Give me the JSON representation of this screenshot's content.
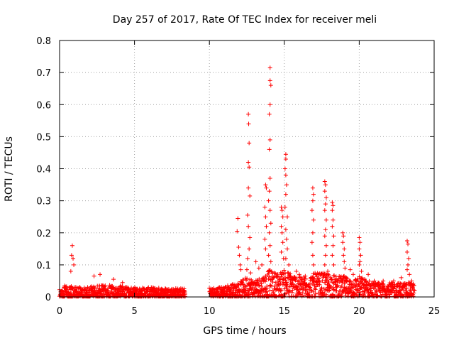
{
  "chart_data": {
    "type": "scatter",
    "title": "Day 257 of 2017, Rate Of TEC Index for receiver meli",
    "xlabel": "GPS time / hours",
    "ylabel": "ROTI / TECUs",
    "xlim": [
      0,
      25
    ],
    "ylim": [
      0,
      0.8
    ],
    "x_ticks": [
      0,
      5,
      10,
      15,
      20,
      25
    ],
    "x_tick_labels": [
      "0",
      "5",
      "10",
      "15",
      "20",
      "25"
    ],
    "y_ticks": [
      0,
      0.1,
      0.2,
      0.3,
      0.4,
      0.5,
      0.6,
      0.7,
      0.8
    ],
    "y_tick_labels": [
      "0",
      "0.1",
      "0.2",
      "0.3",
      "0.4",
      "0.5",
      "0.6",
      "0.7",
      "0.8"
    ],
    "grid": true,
    "marker": "plus",
    "series": [
      {
        "name": "ROTI",
        "color": "#ff0000",
        "baseline": [
          [
            0.0,
            0.015,
            0.02
          ],
          [
            0.5,
            0.015,
            0.02
          ],
          [
            1.0,
            0.015,
            0.02
          ],
          [
            1.5,
            0.012,
            0.02
          ],
          [
            2.0,
            0.012,
            0.02
          ],
          [
            2.5,
            0.015,
            0.02
          ],
          [
            3.0,
            0.015,
            0.022
          ],
          [
            3.5,
            0.015,
            0.022
          ],
          [
            4.0,
            0.015,
            0.022
          ],
          [
            4.5,
            0.012,
            0.018
          ],
          [
            5.0,
            0.012,
            0.018
          ],
          [
            5.5,
            0.012,
            0.018
          ],
          [
            6.0,
            0.012,
            0.018
          ],
          [
            6.5,
            0.012,
            0.018
          ],
          [
            7.0,
            0.012,
            0.016
          ],
          [
            7.5,
            0.012,
            0.016
          ],
          [
            8.0,
            0.012,
            0.016
          ],
          [
            8.4,
            0.012,
            0.014
          ],
          [
            8.6,
            null,
            null
          ],
          [
            9.9,
            null,
            null
          ],
          [
            10.0,
            0.012,
            0.016
          ],
          [
            10.5,
            0.012,
            0.018
          ],
          [
            11.0,
            0.015,
            0.02
          ],
          [
            11.5,
            0.018,
            0.022
          ],
          [
            12.0,
            0.02,
            0.025
          ],
          [
            12.5,
            0.03,
            0.035
          ],
          [
            13.0,
            0.025,
            0.03
          ],
          [
            13.5,
            0.03,
            0.035
          ],
          [
            14.0,
            0.04,
            0.045
          ],
          [
            14.5,
            0.035,
            0.04
          ],
          [
            15.0,
            0.04,
            0.045
          ],
          [
            15.5,
            0.035,
            0.04
          ],
          [
            16.0,
            0.03,
            0.035
          ],
          [
            16.5,
            0.03,
            0.035
          ],
          [
            17.0,
            0.035,
            0.04
          ],
          [
            17.5,
            0.035,
            0.04
          ],
          [
            18.0,
            0.035,
            0.04
          ],
          [
            18.5,
            0.03,
            0.035
          ],
          [
            19.0,
            0.03,
            0.035
          ],
          [
            19.5,
            0.025,
            0.03
          ],
          [
            20.0,
            0.03,
            0.035
          ],
          [
            20.5,
            0.025,
            0.03
          ],
          [
            21.0,
            0.02,
            0.025
          ],
          [
            21.5,
            0.02,
            0.025
          ],
          [
            22.0,
            0.02,
            0.025
          ],
          [
            22.5,
            0.02,
            0.025
          ],
          [
            23.0,
            0.02,
            0.025
          ],
          [
            23.5,
            0.02,
            0.025
          ],
          [
            23.7,
            0.02,
            0.02
          ]
        ],
        "spikes": [
          [
            0.85,
            0.16
          ],
          [
            0.8,
            0.13
          ],
          [
            0.9,
            0.12
          ],
          [
            0.95,
            0.1
          ],
          [
            0.75,
            0.08
          ],
          [
            2.3,
            0.065
          ],
          [
            2.7,
            0.07
          ],
          [
            3.6,
            0.055
          ],
          [
            4.2,
            0.045
          ],
          [
            11.9,
            0.245
          ],
          [
            11.85,
            0.205
          ],
          [
            11.95,
            0.155
          ],
          [
            12.0,
            0.13
          ],
          [
            12.05,
            0.1
          ],
          [
            12.1,
            0.085
          ],
          [
            12.6,
            0.57
          ],
          [
            12.62,
            0.54
          ],
          [
            12.65,
            0.48
          ],
          [
            12.6,
            0.42
          ],
          [
            12.65,
            0.405
          ],
          [
            12.6,
            0.34
          ],
          [
            12.7,
            0.315
          ],
          [
            12.55,
            0.255
          ],
          [
            12.6,
            0.22
          ],
          [
            12.7,
            0.185
          ],
          [
            12.65,
            0.15
          ],
          [
            12.55,
            0.12
          ],
          [
            12.5,
            0.085
          ],
          [
            12.75,
            0.075
          ],
          [
            13.1,
            0.11
          ],
          [
            13.3,
            0.09
          ],
          [
            13.5,
            0.1
          ],
          [
            13.75,
            0.35
          ],
          [
            13.8,
            0.34
          ],
          [
            13.7,
            0.28
          ],
          [
            13.75,
            0.25
          ],
          [
            13.8,
            0.22
          ],
          [
            13.7,
            0.18
          ],
          [
            13.75,
            0.15
          ],
          [
            14.05,
            0.715
          ],
          [
            14.05,
            0.675
          ],
          [
            14.1,
            0.66
          ],
          [
            14.05,
            0.6
          ],
          [
            14.0,
            0.57
          ],
          [
            14.05,
            0.49
          ],
          [
            14.0,
            0.46
          ],
          [
            14.05,
            0.37
          ],
          [
            14.0,
            0.33
          ],
          [
            13.95,
            0.3
          ],
          [
            14.05,
            0.27
          ],
          [
            14.1,
            0.23
          ],
          [
            14.0,
            0.2
          ],
          [
            14.05,
            0.16
          ],
          [
            13.95,
            0.13
          ],
          [
            14.1,
            0.11
          ],
          [
            14.8,
            0.28
          ],
          [
            14.85,
            0.27
          ],
          [
            14.9,
            0.25
          ],
          [
            14.8,
            0.22
          ],
          [
            14.85,
            0.2
          ],
          [
            14.9,
            0.17
          ],
          [
            14.8,
            0.14
          ],
          [
            14.95,
            0.12
          ],
          [
            15.1,
            0.445
          ],
          [
            15.1,
            0.43
          ],
          [
            15.05,
            0.4
          ],
          [
            15.1,
            0.38
          ],
          [
            15.15,
            0.35
          ],
          [
            15.1,
            0.32
          ],
          [
            15.05,
            0.28
          ],
          [
            15.2,
            0.25
          ],
          [
            15.1,
            0.21
          ],
          [
            15.15,
            0.18
          ],
          [
            15.2,
            0.15
          ],
          [
            15.1,
            0.12
          ],
          [
            15.3,
            0.1
          ],
          [
            15.8,
            0.08
          ],
          [
            16.0,
            0.07
          ],
          [
            16.4,
            0.065
          ],
          [
            16.9,
            0.34
          ],
          [
            16.95,
            0.32
          ],
          [
            16.9,
            0.3
          ],
          [
            16.85,
            0.27
          ],
          [
            16.95,
            0.24
          ],
          [
            16.9,
            0.2
          ],
          [
            16.85,
            0.17
          ],
          [
            16.9,
            0.13
          ],
          [
            16.95,
            0.1
          ],
          [
            17.7,
            0.36
          ],
          [
            17.75,
            0.35
          ],
          [
            17.7,
            0.33
          ],
          [
            17.8,
            0.31
          ],
          [
            17.75,
            0.29
          ],
          [
            17.7,
            0.27
          ],
          [
            17.8,
            0.24
          ],
          [
            17.75,
            0.21
          ],
          [
            17.7,
            0.19
          ],
          [
            17.8,
            0.16
          ],
          [
            17.75,
            0.13
          ],
          [
            17.7,
            0.1
          ],
          [
            17.9,
            0.08
          ],
          [
            18.2,
            0.295
          ],
          [
            18.25,
            0.285
          ],
          [
            18.2,
            0.27
          ],
          [
            18.25,
            0.24
          ],
          [
            18.2,
            0.22
          ],
          [
            18.3,
            0.19
          ],
          [
            18.25,
            0.16
          ],
          [
            18.2,
            0.13
          ],
          [
            18.3,
            0.1
          ],
          [
            18.9,
            0.2
          ],
          [
            18.95,
            0.19
          ],
          [
            18.9,
            0.17
          ],
          [
            19.0,
            0.15
          ],
          [
            18.95,
            0.13
          ],
          [
            19.0,
            0.11
          ],
          [
            19.05,
            0.09
          ],
          [
            19.4,
            0.085
          ],
          [
            19.6,
            0.07
          ],
          [
            20.0,
            0.185
          ],
          [
            20.05,
            0.17
          ],
          [
            20.0,
            0.15
          ],
          [
            20.1,
            0.13
          ],
          [
            20.05,
            0.11
          ],
          [
            20.0,
            0.1
          ],
          [
            20.15,
            0.08
          ],
          [
            20.6,
            0.07
          ],
          [
            21.0,
            0.05
          ],
          [
            21.6,
            0.05
          ],
          [
            22.3,
            0.05
          ],
          [
            23.2,
            0.175
          ],
          [
            23.25,
            0.165
          ],
          [
            23.2,
            0.14
          ],
          [
            23.3,
            0.12
          ],
          [
            23.25,
            0.1
          ],
          [
            23.2,
            0.085
          ],
          [
            23.35,
            0.07
          ],
          [
            22.8,
            0.06
          ],
          [
            23.5,
            0.05
          ]
        ]
      }
    ]
  }
}
